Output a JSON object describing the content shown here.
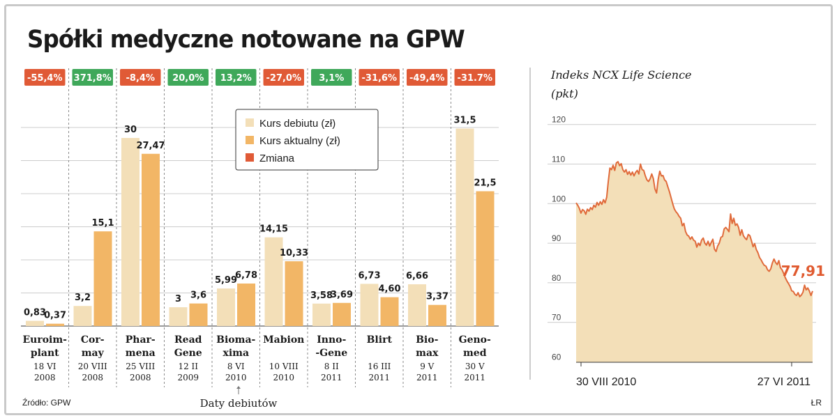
{
  "title": "Spółki medyczne notowane na GPW",
  "source": "Źródło: GPW",
  "author": "ŁR",
  "debut_note": "Daty debiutów",
  "colors": {
    "debut": "#f3dfb8",
    "current": "#f2b666",
    "change_negative": "#e05a36",
    "change_positive": "#3fa85a",
    "line": "#e06a3a",
    "area": "#f3dfb8",
    "grid": "#cccccc"
  },
  "chart_data": [
    {
      "type": "bar",
      "legend": {
        "position": "top-center",
        "items": [
          "Kurs debiutu (zł)",
          "Kurs aktualny (zł)",
          "Zmiana"
        ]
      },
      "ylim": [
        0,
        32
      ],
      "grid": true,
      "companies": [
        {
          "name_lines": [
            "Euroim-",
            "plant"
          ],
          "date_lines": [
            "18 VI",
            "2008"
          ],
          "debut": 0.83,
          "debut_label": "0,83",
          "current": 0.37,
          "current_label": "0,37",
          "change": -55.4,
          "change_label": "-55,4%"
        },
        {
          "name_lines": [
            "Cor-",
            "may"
          ],
          "date_lines": [
            "20 VIII",
            "2008"
          ],
          "debut": 3.2,
          "debut_label": "3,2",
          "current": 15.1,
          "current_label": "15,1",
          "change": 371.8,
          "change_label": "371,8%"
        },
        {
          "name_lines": [
            "Phar-",
            "mena"
          ],
          "date_lines": [
            "25 VIII",
            "2008"
          ],
          "debut": 30,
          "debut_label": "30",
          "current": 27.47,
          "current_label": "27,47",
          "change": -8.4,
          "change_label": "-8,4%"
        },
        {
          "name_lines": [
            "Read",
            "Gene"
          ],
          "date_lines": [
            "12 II",
            "2009"
          ],
          "debut": 3,
          "debut_label": "3",
          "current": 3.6,
          "current_label": "3,6",
          "change": 20.0,
          "change_label": "20,0%"
        },
        {
          "name_lines": [
            "Bioma-",
            "xima"
          ],
          "date_lines": [
            "8 VI",
            "2010"
          ],
          "debut": 5.99,
          "debut_label": "5,99",
          "current": 6.78,
          "current_label": "6,78",
          "change": 13.2,
          "change_label": "13,2%"
        },
        {
          "name_lines": [
            "Mabion"
          ],
          "date_lines": [
            "10 VIII",
            "2010"
          ],
          "debut": 14.15,
          "debut_label": "14,15",
          "current": 10.33,
          "current_label": "10,33",
          "change": -27.0,
          "change_label": "-27,0%"
        },
        {
          "name_lines": [
            "Inno-",
            "-Gene"
          ],
          "date_lines": [
            "8 II",
            "2011"
          ],
          "debut": 3.58,
          "debut_label": "3,58",
          "current": 3.69,
          "current_label": "3,69",
          "change": 3.1,
          "change_label": "3,1%"
        },
        {
          "name_lines": [
            "Blirt"
          ],
          "date_lines": [
            "16 III",
            "2011"
          ],
          "debut": 6.73,
          "debut_label": "6,73",
          "current": 4.6,
          "current_label": "4,60",
          "change": -31.6,
          "change_label": "-31,6%"
        },
        {
          "name_lines": [
            "Bio-",
            "max"
          ],
          "date_lines": [
            "9 V",
            "2011"
          ],
          "debut": 6.66,
          "debut_label": "6,66",
          "current": 3.37,
          "current_label": "3,37",
          "change": -49.4,
          "change_label": "-49,4%"
        },
        {
          "name_lines": [
            "Geno-",
            "med"
          ],
          "date_lines": [
            "30 V",
            "2011"
          ],
          "debut": 31.5,
          "debut_label": "31,5",
          "current": 21.5,
          "current_label": "21,5",
          "change": -31.7,
          "change_label": "-31.7%"
        }
      ]
    },
    {
      "type": "area",
      "title": "Indeks NCX Life Science",
      "ylabel": "(pkt)",
      "ylim": [
        60,
        120
      ],
      "yticks": [
        60,
        70,
        80,
        90,
        100,
        110,
        120
      ],
      "grid": true,
      "x_tick_labels": [
        "30 VIII 2010",
        "27 VI 2011"
      ],
      "x_range": [
        "30 VIII 2010",
        "27 VI 2011"
      ],
      "last_value": 77.91,
      "last_value_label": "77,91",
      "values": [
        100.2,
        99.6,
        98.8,
        97.6,
        98.5,
        98.2,
        97.3,
        98.6,
        98.1,
        99.0,
        98.5,
        99.6,
        99.1,
        100.3,
        99.6,
        100.5,
        99.8,
        101.0,
        100.2,
        101.6,
        105.6,
        109.0,
        108.6,
        109.7,
        108.4,
        110.3,
        110.6,
        109.6,
        110.1,
        108.6,
        108.0,
        108.6,
        107.4,
        108.1,
        107.2,
        108.0,
        107.0,
        107.9,
        108.4,
        107.5,
        110.0,
        108.6,
        108.4,
        107.0,
        106.0,
        105.6,
        106.3,
        107.5,
        106.3,
        103.7,
        102.7,
        106.1,
        108.2,
        107.0,
        107.1,
        106.0,
        105.6,
        104.3,
        103.0,
        101.5,
        100.0,
        98.7,
        98.0,
        97.5,
        96.8,
        96.3,
        94.4,
        95.0,
        93.0,
        92.1,
        91.8,
        91.0,
        91.6,
        90.8,
        90.5,
        89.0,
        90.0,
        89.4,
        90.8,
        91.3,
        90.0,
        89.5,
        90.5,
        89.3,
        90.2,
        91.0,
        88.5,
        87.9,
        89.3,
        90.0,
        91.5,
        91.7,
        93.6,
        94.0,
        93.5,
        92.9,
        97.4,
        95.0,
        96.3,
        94.5,
        94.9,
        94.0,
        92.0,
        93.4,
        91.9,
        91.3,
        90.9,
        92.2,
        91.9,
        90.6,
        89.1,
        89.9,
        88.4,
        87.6,
        86.4,
        85.8,
        85.0,
        84.4,
        84.2,
        83.3,
        82.9,
        83.5,
        85.0,
        86.0,
        85.1,
        84.6,
        85.6,
        83.8,
        83.3,
        82.4,
        81.3,
        80.5,
        79.8,
        79.1,
        78.0,
        77.8,
        77.1,
        76.8,
        77.5,
        76.5,
        76.9,
        77.6,
        79.4,
        78.2,
        78.7,
        77.9,
        76.8,
        77.91
      ]
    }
  ]
}
